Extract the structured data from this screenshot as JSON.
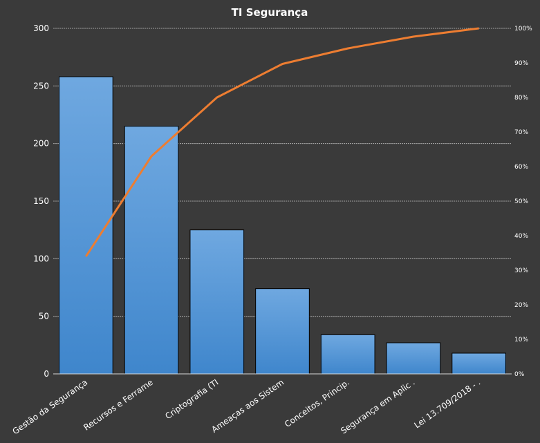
{
  "chart_data": {
    "type": "bar",
    "title": "TI Segurança",
    "categories": [
      "Gestão da Segurança",
      "Recursos e Ferrame",
      "Criptografia (TI",
      "Ameaças aos Sistem",
      "Conceitos, Princip.",
      "Segurança em Aplic .",
      "Lei 13.709/2018 - ."
    ],
    "series": [
      {
        "type": "bar",
        "values": [
          258,
          215,
          125,
          74,
          34,
          27,
          18
        ]
      },
      {
        "type": "line",
        "axis": "secondary",
        "values": [
          0.34,
          0.63,
          0.8,
          0.897,
          0.942,
          0.976,
          1.0
        ]
      }
    ],
    "ylim": [
      0,
      300
    ],
    "y_ticks": [
      "0",
      "50",
      "100",
      "150",
      "200",
      "250",
      "300"
    ],
    "y2lim": [
      0,
      1
    ],
    "y2_ticks": [
      "0%",
      "10%",
      "20%",
      "30%",
      "40%",
      "50%",
      "60%",
      "70%",
      "80%",
      "90%",
      "100%"
    ],
    "grid": true,
    "colors": {
      "background": "#3a3a3a",
      "bar": "#4a90d9",
      "line": "#ed7d31",
      "grid": "#bfbfbf",
      "text": "#ffffff"
    }
  }
}
